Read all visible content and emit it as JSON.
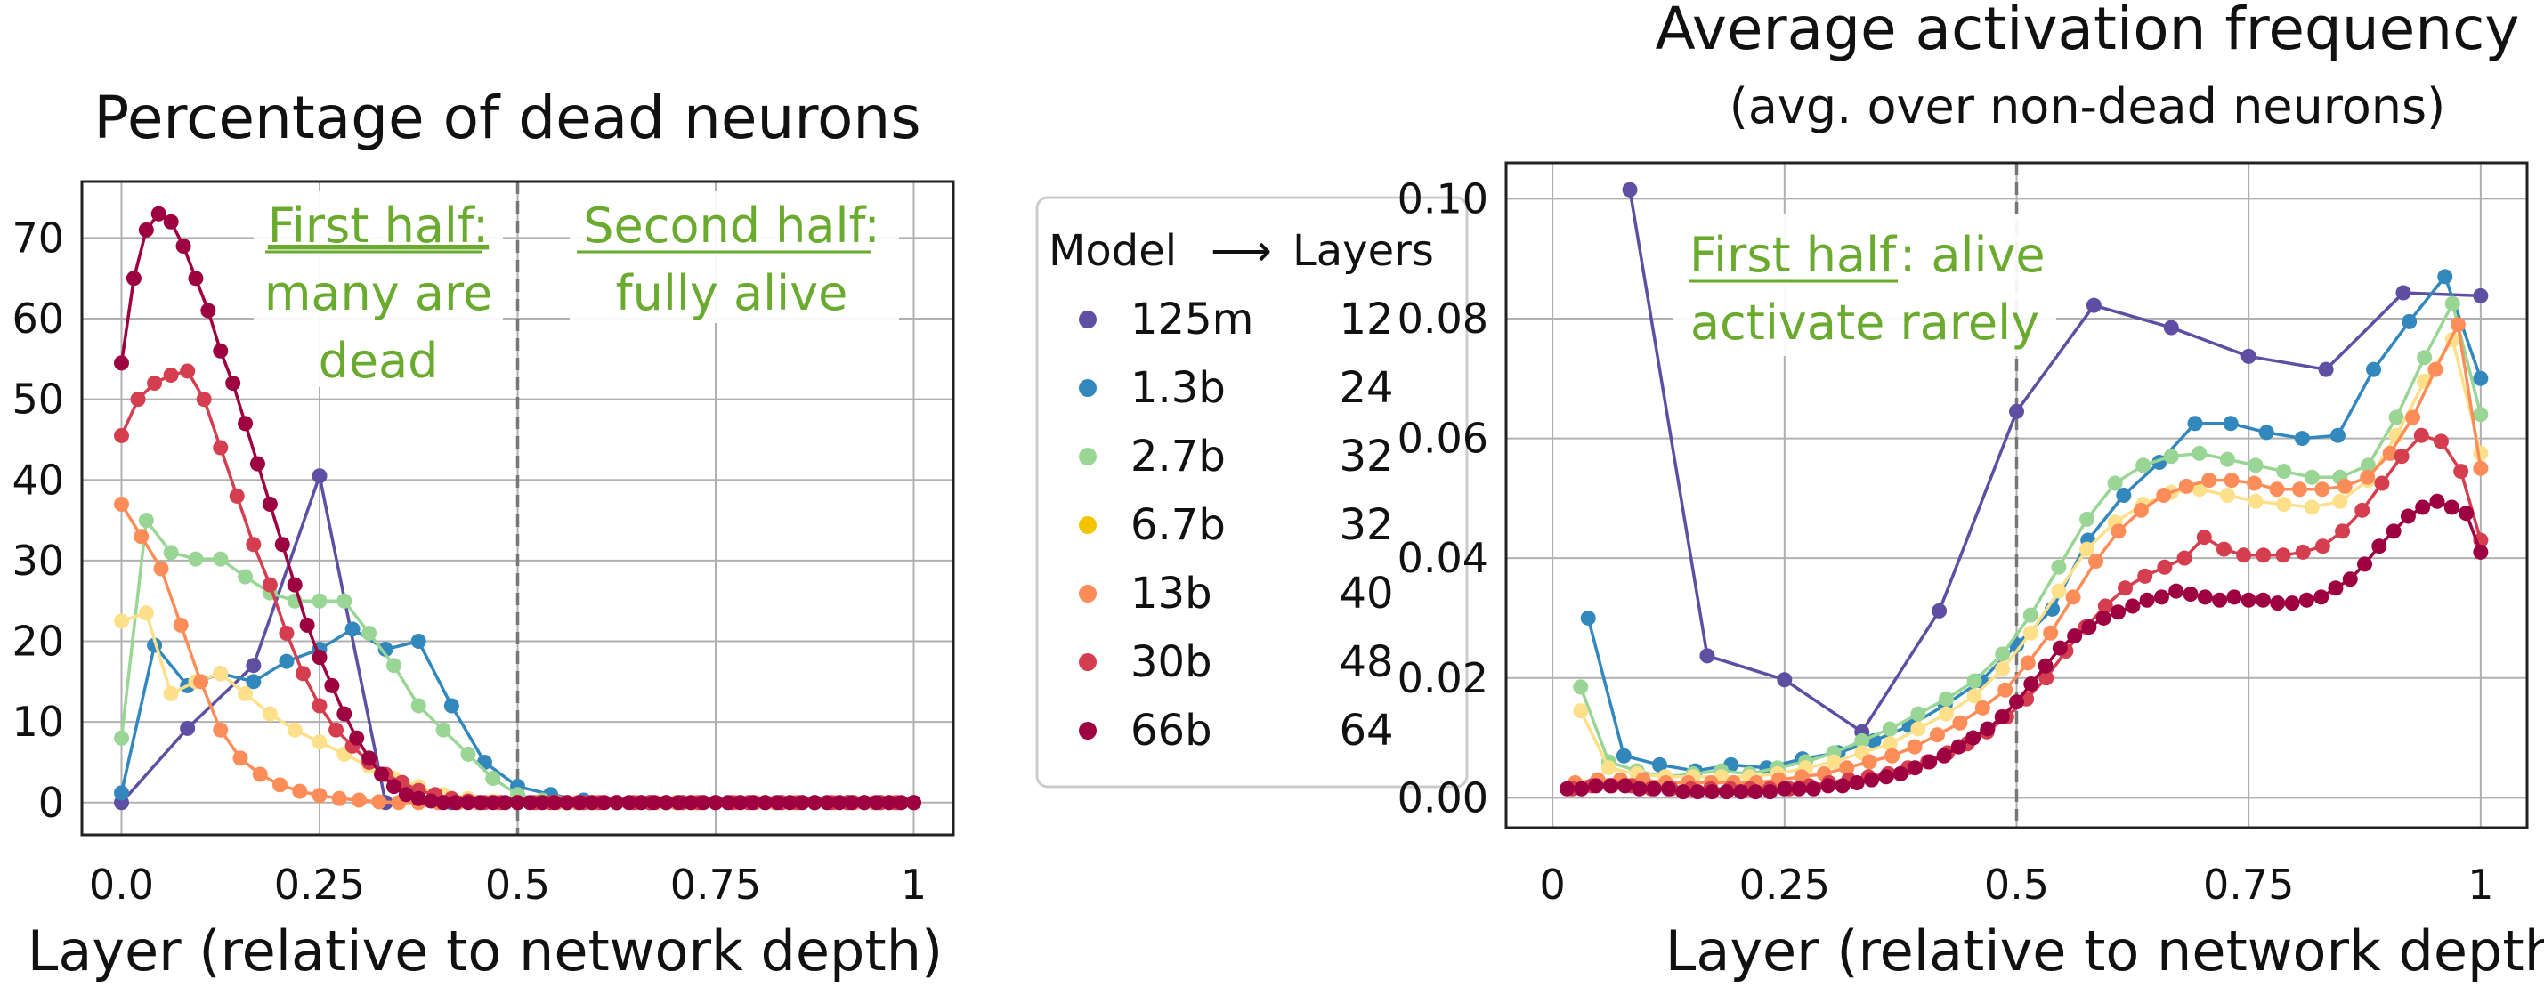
{
  "chart_data": [
    {
      "type": "line",
      "title": "Percentage of dead neurons",
      "xlabel": "Layer (relative to network depth)",
      "ylabel": "",
      "xlim": [
        -0.05,
        1.05
      ],
      "ylim": [
        -4,
        77
      ],
      "x_ticks": [
        0,
        0.25,
        0.5,
        0.75,
        1
      ],
      "x_tick_labels": [
        "0.0",
        "0.25",
        "0.5",
        "0.75",
        "1"
      ],
      "y_ticks": [
        0,
        10,
        20,
        30,
        40,
        50,
        60,
        70
      ],
      "y_tick_labels": [
        "0",
        "10",
        "20",
        "30",
        "40",
        "50",
        "60",
        "70"
      ],
      "grid": true,
      "vline": 0.5,
      "annotations": [
        {
          "underlined": "First half:",
          "lines": [
            "many are",
            "dead"
          ]
        },
        {
          "underlined": "Second half:",
          "lines": [
            "fully alive"
          ]
        }
      ],
      "series": [
        {
          "name": "125m",
          "color": "#5e4fa2",
          "y": [
            0,
            9.2,
            17,
            40.5,
            0,
            0,
            0,
            0,
            0,
            0,
            0,
            0,
            0
          ]
        },
        {
          "name": "1.3b",
          "color": "#3288bd",
          "y": [
            1.2,
            19.5,
            14.5,
            16,
            15,
            17.5,
            19,
            21.5,
            19,
            20,
            12,
            5,
            2,
            1,
            0.3,
            0,
            0,
            0,
            0,
            0,
            0,
            0,
            0,
            0,
            0
          ]
        },
        {
          "name": "2.7b",
          "color": "#99d594",
          "y": [
            8,
            35,
            31,
            30.2,
            30.2,
            28,
            26,
            25,
            25,
            25,
            21,
            17,
            12,
            9,
            6,
            3,
            1,
            0.3,
            0,
            0,
            0,
            0,
            0,
            0,
            0,
            0,
            0,
            0,
            0,
            0,
            0,
            0,
            0
          ]
        },
        {
          "name": "6.7b",
          "color": "#fee08b",
          "y": [
            22.5,
            23.5,
            13.5,
            15,
            16,
            13.5,
            11,
            9,
            7.5,
            6,
            4.5,
            3,
            2,
            1,
            0.5,
            0.2,
            0,
            0,
            0,
            0,
            0,
            0,
            0,
            0,
            0,
            0,
            0,
            0,
            0,
            0,
            0,
            0,
            0
          ]
        },
        {
          "name": "13b",
          "color": "#fc8d59",
          "y": [
            37,
            33,
            29,
            22,
            15,
            9,
            5.5,
            3.5,
            2.2,
            1.4,
            0.9,
            0.5,
            0.3,
            0.1,
            0,
            0,
            0,
            0,
            0,
            0,
            0,
            0,
            0,
            0,
            0,
            0,
            0,
            0,
            0,
            0,
            0,
            0,
            0,
            0,
            0,
            0,
            0,
            0,
            0,
            0,
            0
          ]
        },
        {
          "name": "30b",
          "color": "#d53e4f",
          "y": [
            45.5,
            50,
            52,
            53,
            53.5,
            50,
            44,
            38,
            32,
            27,
            21,
            16,
            12,
            9,
            7,
            5,
            3.5,
            2.5,
            1.5,
            1,
            0.5,
            0.2,
            0,
            0,
            0,
            0,
            0,
            0,
            0,
            0,
            0,
            0,
            0,
            0,
            0,
            0,
            0,
            0,
            0,
            0,
            0,
            0,
            0,
            0,
            0,
            0,
            0,
            0,
            0
          ]
        },
        {
          "name": "66b",
          "color": "#9e0142",
          "y": [
            54.5,
            65,
            71,
            73,
            72,
            69,
            65,
            61,
            56,
            52,
            47,
            42,
            37,
            32,
            27,
            22,
            18,
            14.5,
            11,
            8,
            5.5,
            3.5,
            2,
            1,
            0.5,
            0.2,
            0,
            0,
            0,
            0,
            0,
            0,
            0,
            0,
            0,
            0,
            0,
            0,
            0,
            0,
            0,
            0,
            0,
            0,
            0,
            0,
            0,
            0,
            0,
            0,
            0,
            0,
            0,
            0,
            0,
            0,
            0,
            0,
            0,
            0,
            0,
            0,
            0,
            0,
            0
          ]
        }
      ]
    },
    {
      "type": "line",
      "title": "Average activation frequency",
      "subtitle": "(avg. over non-dead neurons)",
      "xlabel": "Layer (relative to network depth)",
      "ylabel": "",
      "xlim": [
        -0.05,
        1.05
      ],
      "ylim": [
        -0.005,
        0.106
      ],
      "x_ticks": [
        0,
        0.25,
        0.5,
        0.75,
        1
      ],
      "x_tick_labels": [
        "0",
        "0.25",
        "0.5",
        "0.75",
        "1"
      ],
      "y_ticks": [
        0,
        0.02,
        0.04,
        0.06,
        0.08,
        0.1
      ],
      "y_tick_labels": [
        "0.00",
        "0.02",
        "0.04",
        "0.06",
        "0.08",
        "0.10"
      ],
      "grid": true,
      "vline": 0.5,
      "annotations": [
        {
          "underlined": "First half",
          "rest": ": alive",
          "lines": [
            "activate rarely"
          ]
        }
      ],
      "series": [
        {
          "name": "125m",
          "color": "#5e4fa2",
          "x_start_index": 1,
          "y": [
            0.1015,
            0.0237,
            0.0197,
            0.011,
            0.0312,
            0.0645,
            0.0822,
            0.0785,
            0.0737,
            0.0715,
            0.0843,
            0.0838
          ]
        },
        {
          "name": "1.3b",
          "color": "#3288bd",
          "x_start_index": 1,
          "y": [
            0.03,
            0.007,
            0.0055,
            0.0045,
            0.0055,
            0.005,
            0.0065,
            0.0075,
            0.0095,
            0.012,
            0.0155,
            0.0195,
            0.0255,
            0.0315,
            0.043,
            0.0505,
            0.056,
            0.0625,
            0.0625,
            0.061,
            0.06,
            0.0605,
            0.0715,
            0.0795,
            0.087,
            0.07
          ]
        },
        {
          "name": "2.7b",
          "color": "#99d594",
          "x_start_index": 1,
          "y": [
            0.0185,
            0.006,
            0.0045,
            0.0035,
            0.004,
            0.0045,
            0.004,
            0.005,
            0.006,
            0.0075,
            0.0095,
            0.0115,
            0.014,
            0.0165,
            0.0195,
            0.024,
            0.0305,
            0.0385,
            0.0465,
            0.0525,
            0.0555,
            0.057,
            0.0575,
            0.0565,
            0.0555,
            0.0545,
            0.0535,
            0.0535,
            0.0555,
            0.0635,
            0.0735,
            0.0825,
            0.064
          ]
        },
        {
          "name": "6.7b",
          "color": "#fee08b",
          "x_start_index": 1,
          "y": [
            0.0145,
            0.005,
            0.004,
            0.0035,
            0.0035,
            0.0035,
            0.0035,
            0.004,
            0.005,
            0.006,
            0.0075,
            0.009,
            0.0115,
            0.014,
            0.017,
            0.0215,
            0.0275,
            0.0345,
            0.0415,
            0.046,
            0.049,
            0.051,
            0.0515,
            0.0505,
            0.0495,
            0.049,
            0.0485,
            0.0495,
            0.053,
            0.0605,
            0.0695,
            0.0765,
            0.0575
          ]
        },
        {
          "name": "13b",
          "color": "#fc8d59",
          "x_start_index": 1,
          "y": [
            0.0025,
            0.003,
            0.003,
            0.003,
            0.0025,
            0.0025,
            0.0025,
            0.0025,
            0.0025,
            0.003,
            0.0035,
            0.004,
            0.005,
            0.006,
            0.007,
            0.0085,
            0.0105,
            0.0125,
            0.015,
            0.018,
            0.0225,
            0.0275,
            0.0335,
            0.0395,
            0.0445,
            0.048,
            0.0505,
            0.052,
            0.053,
            0.053,
            0.0525,
            0.0515,
            0.0515,
            0.0515,
            0.052,
            0.0535,
            0.0575,
            0.0635,
            0.0715,
            0.079,
            0.055
          ]
        },
        {
          "name": "30b",
          "color": "#d53e4f",
          "x_start_index": 1,
          "y": [
            0.0015,
            0.002,
            0.002,
            0.002,
            0.0015,
            0.0015,
            0.0015,
            0.0015,
            0.0015,
            0.0015,
            0.0015,
            0.0015,
            0.002,
            0.0025,
            0.003,
            0.0035,
            0.004,
            0.005,
            0.006,
            0.0075,
            0.009,
            0.011,
            0.0135,
            0.0165,
            0.02,
            0.0245,
            0.0285,
            0.032,
            0.035,
            0.037,
            0.0385,
            0.04,
            0.0435,
            0.0415,
            0.0405,
            0.0405,
            0.0405,
            0.041,
            0.042,
            0.0445,
            0.048,
            0.0525,
            0.057,
            0.0605,
            0.0595,
            0.0545,
            0.043
          ]
        },
        {
          "name": "66b",
          "color": "#9e0142",
          "x_start_index": 1,
          "y": [
            0.0015,
            0.0015,
            0.002,
            0.002,
            0.002,
            0.0015,
            0.0015,
            0.0015,
            0.001,
            0.001,
            0.001,
            0.001,
            0.001,
            0.001,
            0.001,
            0.0015,
            0.0015,
            0.0015,
            0.002,
            0.002,
            0.0025,
            0.003,
            0.0035,
            0.004,
            0.005,
            0.006,
            0.007,
            0.0085,
            0.01,
            0.0115,
            0.0135,
            0.016,
            0.019,
            0.022,
            0.025,
            0.027,
            0.0285,
            0.03,
            0.031,
            0.032,
            0.033,
            0.0335,
            0.0345,
            0.034,
            0.0335,
            0.033,
            0.0335,
            0.033,
            0.033,
            0.0325,
            0.0325,
            0.033,
            0.0335,
            0.035,
            0.0365,
            0.039,
            0.042,
            0.0445,
            0.047,
            0.0485,
            0.0495,
            0.0485,
            0.0475,
            0.041
          ]
        }
      ]
    }
  ],
  "legend": {
    "header_model": "Model",
    "header_arrow": "⟶",
    "header_layers": "Layers",
    "rows": [
      {
        "model": "125m",
        "layers": "12",
        "color": "#5e4fa2"
      },
      {
        "model": "1.3b",
        "layers": "24",
        "color": "#3288bd"
      },
      {
        "model": "2.7b",
        "layers": "32",
        "color": "#99d594"
      },
      {
        "model": "6.7b",
        "layers": "32",
        "color": "#f5c400"
      },
      {
        "model": "13b",
        "layers": "40",
        "color": "#fc8d59"
      },
      {
        "model": "30b",
        "layers": "48",
        "color": "#d53e4f"
      },
      {
        "model": "66b",
        "layers": "64",
        "color": "#9e0142"
      }
    ]
  }
}
